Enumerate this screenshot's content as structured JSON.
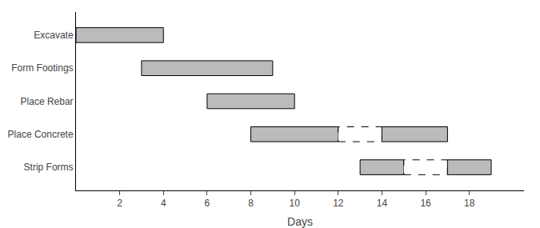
{
  "chart_data": {
    "type": "gantt",
    "categories": [
      "Excavate",
      "Form Footings",
      "Place Rebar",
      "Place Concrete",
      "Strip Forms"
    ],
    "bars": [
      {
        "category": "Excavate",
        "segments": [
          {
            "start": 0,
            "end": 4,
            "line_style": "solid"
          }
        ]
      },
      {
        "category": "Form Footings",
        "segments": [
          {
            "start": 3,
            "end": 9,
            "line_style": "solid"
          }
        ]
      },
      {
        "category": "Place Rebar",
        "segments": [
          {
            "start": 6,
            "end": 10,
            "line_style": "solid"
          }
        ]
      },
      {
        "category": "Place Concrete",
        "segments": [
          {
            "start": 8,
            "end": 12,
            "line_style": "solid"
          },
          {
            "start": 12,
            "end": 14,
            "line_style": "dashed"
          },
          {
            "start": 14,
            "end": 17,
            "line_style": "solid"
          }
        ]
      },
      {
        "category": "Strip Forms",
        "segments": [
          {
            "start": 13,
            "end": 15,
            "line_style": "solid"
          },
          {
            "start": 15,
            "end": 17,
            "line_style": "dashed"
          },
          {
            "start": 17,
            "end": 19,
            "line_style": "solid"
          }
        ]
      }
    ],
    "xlim": [
      0,
      20.5
    ],
    "xticks": [
      2,
      4,
      6,
      8,
      10,
      12,
      14,
      16,
      18
    ],
    "xlabel": "Days",
    "color": "#bbbbbb",
    "grid": false
  }
}
